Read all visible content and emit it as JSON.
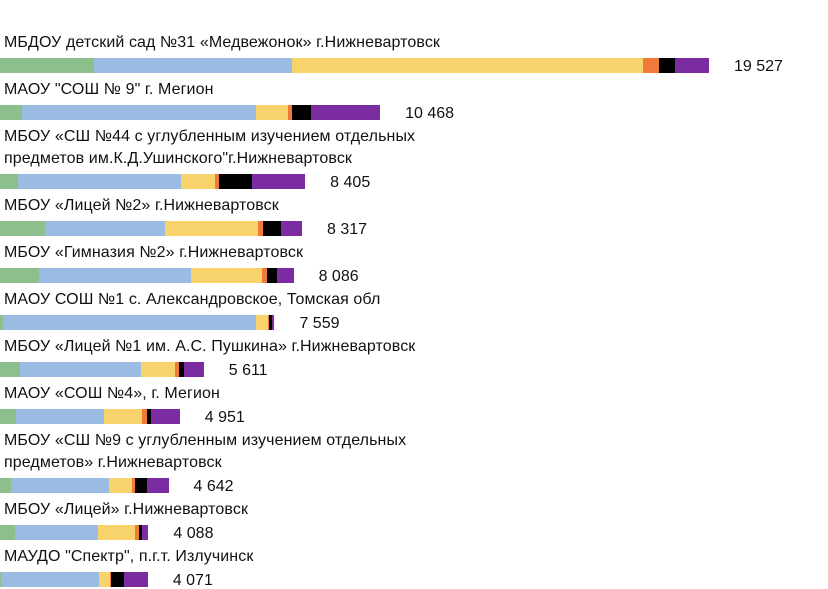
{
  "colors": {
    "green": "#8cbf8c",
    "blue": "#9bbce2",
    "yellow": "#f8d26b",
    "orange": "#ef7a3b",
    "black": "#000000",
    "purple": "#7a2ca0"
  },
  "chart_data": {
    "type": "bar",
    "orientation": "horizontal",
    "stacked": true,
    "rows": [
      {
        "label": [
          "МБДОУ детский сад №31 «Медвежонок» г.Нижневартовск"
        ],
        "total_label": "19 527",
        "total": 19527,
        "segments": {
          "green": 2600,
          "blue": 5450,
          "yellow": 9650,
          "orange": 450,
          "black": 450,
          "purple": 927
        }
      },
      {
        "label": [
          "МАОУ \"СОШ № 9\" г. Мегион"
        ],
        "total_label": "10 468",
        "total": 10468,
        "segments": {
          "green": 600,
          "blue": 6450,
          "yellow": 880,
          "orange": 120,
          "black": 520,
          "purple": 1898
        }
      },
      {
        "label": [
          "МБОУ «СШ №44 с углубленным изучением отдельных",
          "предметов им.К.Д.Ушинского\"г.Нижневартовск"
        ],
        "total_label": "8 405",
        "total": 8405,
        "segments": {
          "green": 500,
          "blue": 4480,
          "yellow": 950,
          "orange": 100,
          "black": 920,
          "purple": 1455
        }
      },
      {
        "label": [
          "МБОУ «Лицей №2» г.Нижневартовск"
        ],
        "total_label": "8 317",
        "total": 8317,
        "segments": {
          "green": 1250,
          "blue": 3300,
          "yellow": 2550,
          "orange": 150,
          "black": 500,
          "purple": 567
        }
      },
      {
        "label": [
          "МБОУ «Гимназия №2» г.Нижневартовск"
        ],
        "total_label": "8 086",
        "total": 8086,
        "segments": {
          "green": 1080,
          "blue": 4180,
          "yellow": 1970,
          "orange": 130,
          "black": 260,
          "purple": 466
        }
      },
      {
        "label": [
          "МАОУ СОШ №1 с. Александровское, Томская обл"
        ],
        "total_label": "7 559",
        "total": 7559,
        "segments": {
          "green": 90,
          "blue": 6950,
          "yellow": 330,
          "orange": 50,
          "black": 60,
          "purple": 79
        }
      },
      {
        "label": [
          "МБОУ «Лицей №1 им. А.С. Пушкина» г.Нижневартовск"
        ],
        "total_label": "5 611",
        "total": 5611,
        "segments": {
          "green": 550,
          "blue": 3340,
          "yellow": 930,
          "orange": 100,
          "black": 150,
          "purple": 541
        }
      },
      {
        "label": [
          "МАОУ «СОШ №4», г. Мегион"
        ],
        "total_label": "4 951",
        "total": 4951,
        "segments": {
          "green": 450,
          "blue": 2420,
          "yellow": 1040,
          "orange": 130,
          "black": 120,
          "purple": 791
        }
      },
      {
        "label": [
          "МБОУ «СШ №9 с углубленным изучением отдельных",
          "предметов» г.Нижневартовск"
        ],
        "total_label": "4 642",
        "total": 4642,
        "segments": {
          "green": 300,
          "blue": 2700,
          "yellow": 630,
          "orange": 100,
          "black": 330,
          "purple": 582
        }
      },
      {
        "label": [
          "МБОУ «Лицей» г.Нижневартовск"
        ],
        "total_label": "4 088",
        "total": 4088,
        "segments": {
          "green": 400,
          "blue": 2300,
          "yellow": 1030,
          "orange": 100,
          "black": 70,
          "purple": 188
        }
      },
      {
        "label": [
          "МАУДО \"Спектр\", п.г.т. Излучинск"
        ],
        "total_label": "4 071",
        "total": 4071,
        "segments": {
          "green": 30,
          "blue": 2700,
          "yellow": 300,
          "orange": 40,
          "black": 350,
          "purple": 651
        }
      }
    ]
  }
}
